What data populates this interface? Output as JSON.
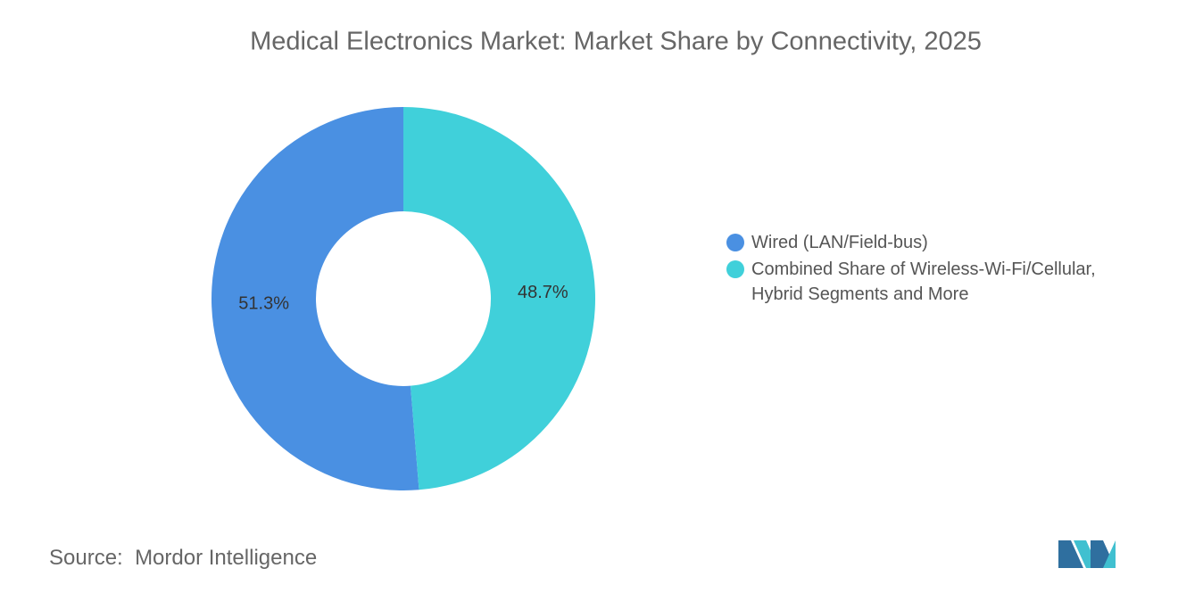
{
  "chart_data": {
    "type": "donut",
    "title": "Medical Electronics Market: Market Share by Connectivity, 2025",
    "categories": [
      "Wired (LAN/Field-bus)",
      "Combined Share of Wireless-Wi-Fi/Cellular, Hybrid Segments and More"
    ],
    "values": [
      51.3,
      48.7
    ],
    "value_labels": [
      "51.3%",
      "48.7%"
    ],
    "colors": [
      "#4a90e2",
      "#40d0da"
    ]
  },
  "source": {
    "label": "Source:",
    "text": "Mordor Intelligence"
  }
}
